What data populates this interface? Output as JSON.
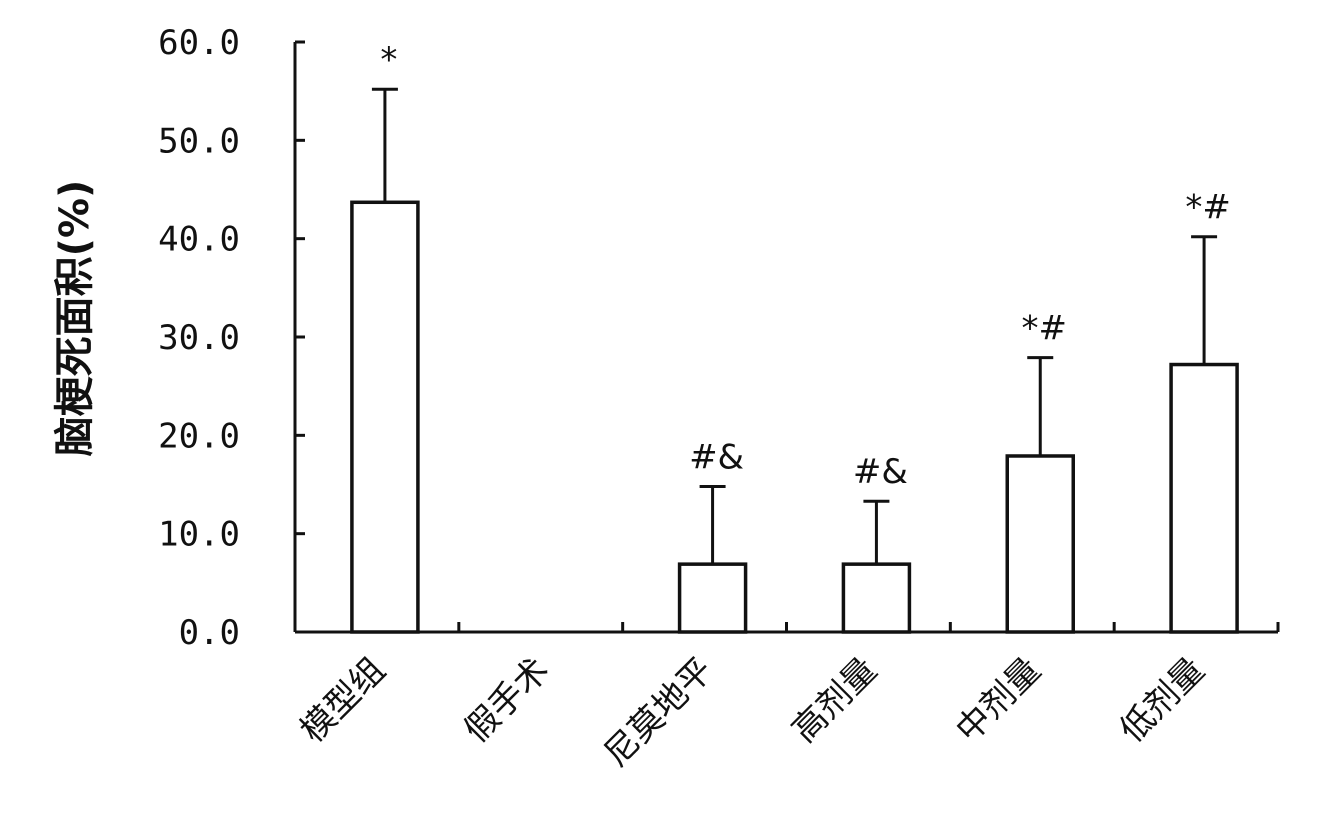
{
  "chart_data": {
    "type": "bar",
    "title": "",
    "xlabel": "",
    "ylabel": "脑梗死面积(%)",
    "ylim": [
      0,
      60
    ],
    "yticks": [
      "0.0",
      "10.0",
      "20.0",
      "30.0",
      "40.0",
      "50.0",
      "60.0"
    ],
    "categories": [
      "模型组",
      "假手术",
      "尼莫地平",
      "高剂量",
      "中剂量",
      "低剂量"
    ],
    "values": [
      43.7,
      0.0,
      6.9,
      6.9,
      17.9,
      27.2
    ],
    "error": [
      11.5,
      0.0,
      7.9,
      6.4,
      10.0,
      13.0
    ],
    "annotations": [
      "*",
      "",
      "#&",
      "#&",
      "*#",
      "*#"
    ],
    "grid": false,
    "colors": {
      "bar_fill": "#ffffff",
      "stroke": "#111111"
    }
  }
}
